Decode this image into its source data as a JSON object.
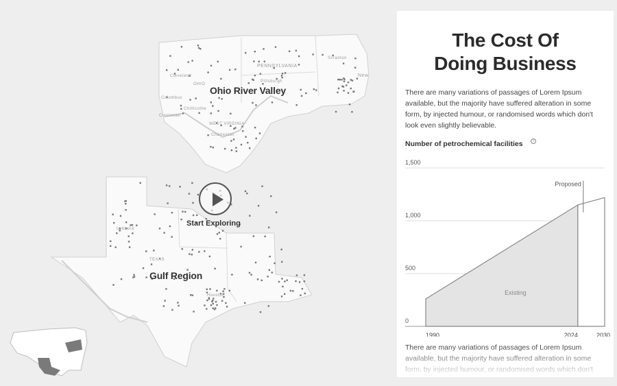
{
  "map": {
    "regions": [
      {
        "label": "Ohio River Valley"
      },
      {
        "label": "Gulf Region"
      }
    ],
    "state_labels": [
      "PENNSYLVANIA",
      "OHIO",
      "WEST VIRGINIA",
      "TEXAS",
      "Cleveland",
      "Columbus",
      "Cincinnati",
      "Chillicothe",
      "Pittsburgh",
      "Scranton",
      "Charleston",
      "New",
      "Lubbock",
      "Houston"
    ],
    "start_label": "Start Exploring",
    "colors": {
      "land": "#fafafa",
      "facility": "#777777",
      "highlight": "#7a7a7a",
      "water": "#cfcfcf"
    }
  },
  "panel": {
    "title": "The Cost Of\nDoing Business",
    "paragraph_1": "There are many variations of passages of Lorem Ipsum available, but the majority have suffered alteration in some form, by injected humour, or randomised words which don't look even slightly believable.",
    "paragraph_2": "There are many variations of passages of Lorem Ipsum available, but the majority have suffered alteration in some form, by injected humour, or randomised words which don't"
  },
  "chart_data": {
    "type": "area",
    "title": "Number of petrochemical facilities",
    "ylim": [
      0,
      1500
    ],
    "y_ticks": [
      0,
      500,
      1000,
      1500
    ],
    "y_tick_labels": [
      "0",
      "500",
      "1,000",
      "1,500"
    ],
    "xlim": [
      1990,
      2030
    ],
    "x_tick_labels": [
      "1990",
      "2024",
      "2030"
    ],
    "grid": true,
    "series": [
      {
        "name": "Existing",
        "x": [
          1990,
          2024
        ],
        "y": [
          260,
          1150
        ]
      },
      {
        "name": "Proposed",
        "x": [
          2024,
          2030
        ],
        "y": [
          1150,
          1220
        ]
      }
    ],
    "annotations": [
      "Existing",
      "Proposed"
    ],
    "colors": {
      "existing_fill": "#e4e4e4",
      "line": "#888888",
      "grid": "#dddddd"
    }
  }
}
